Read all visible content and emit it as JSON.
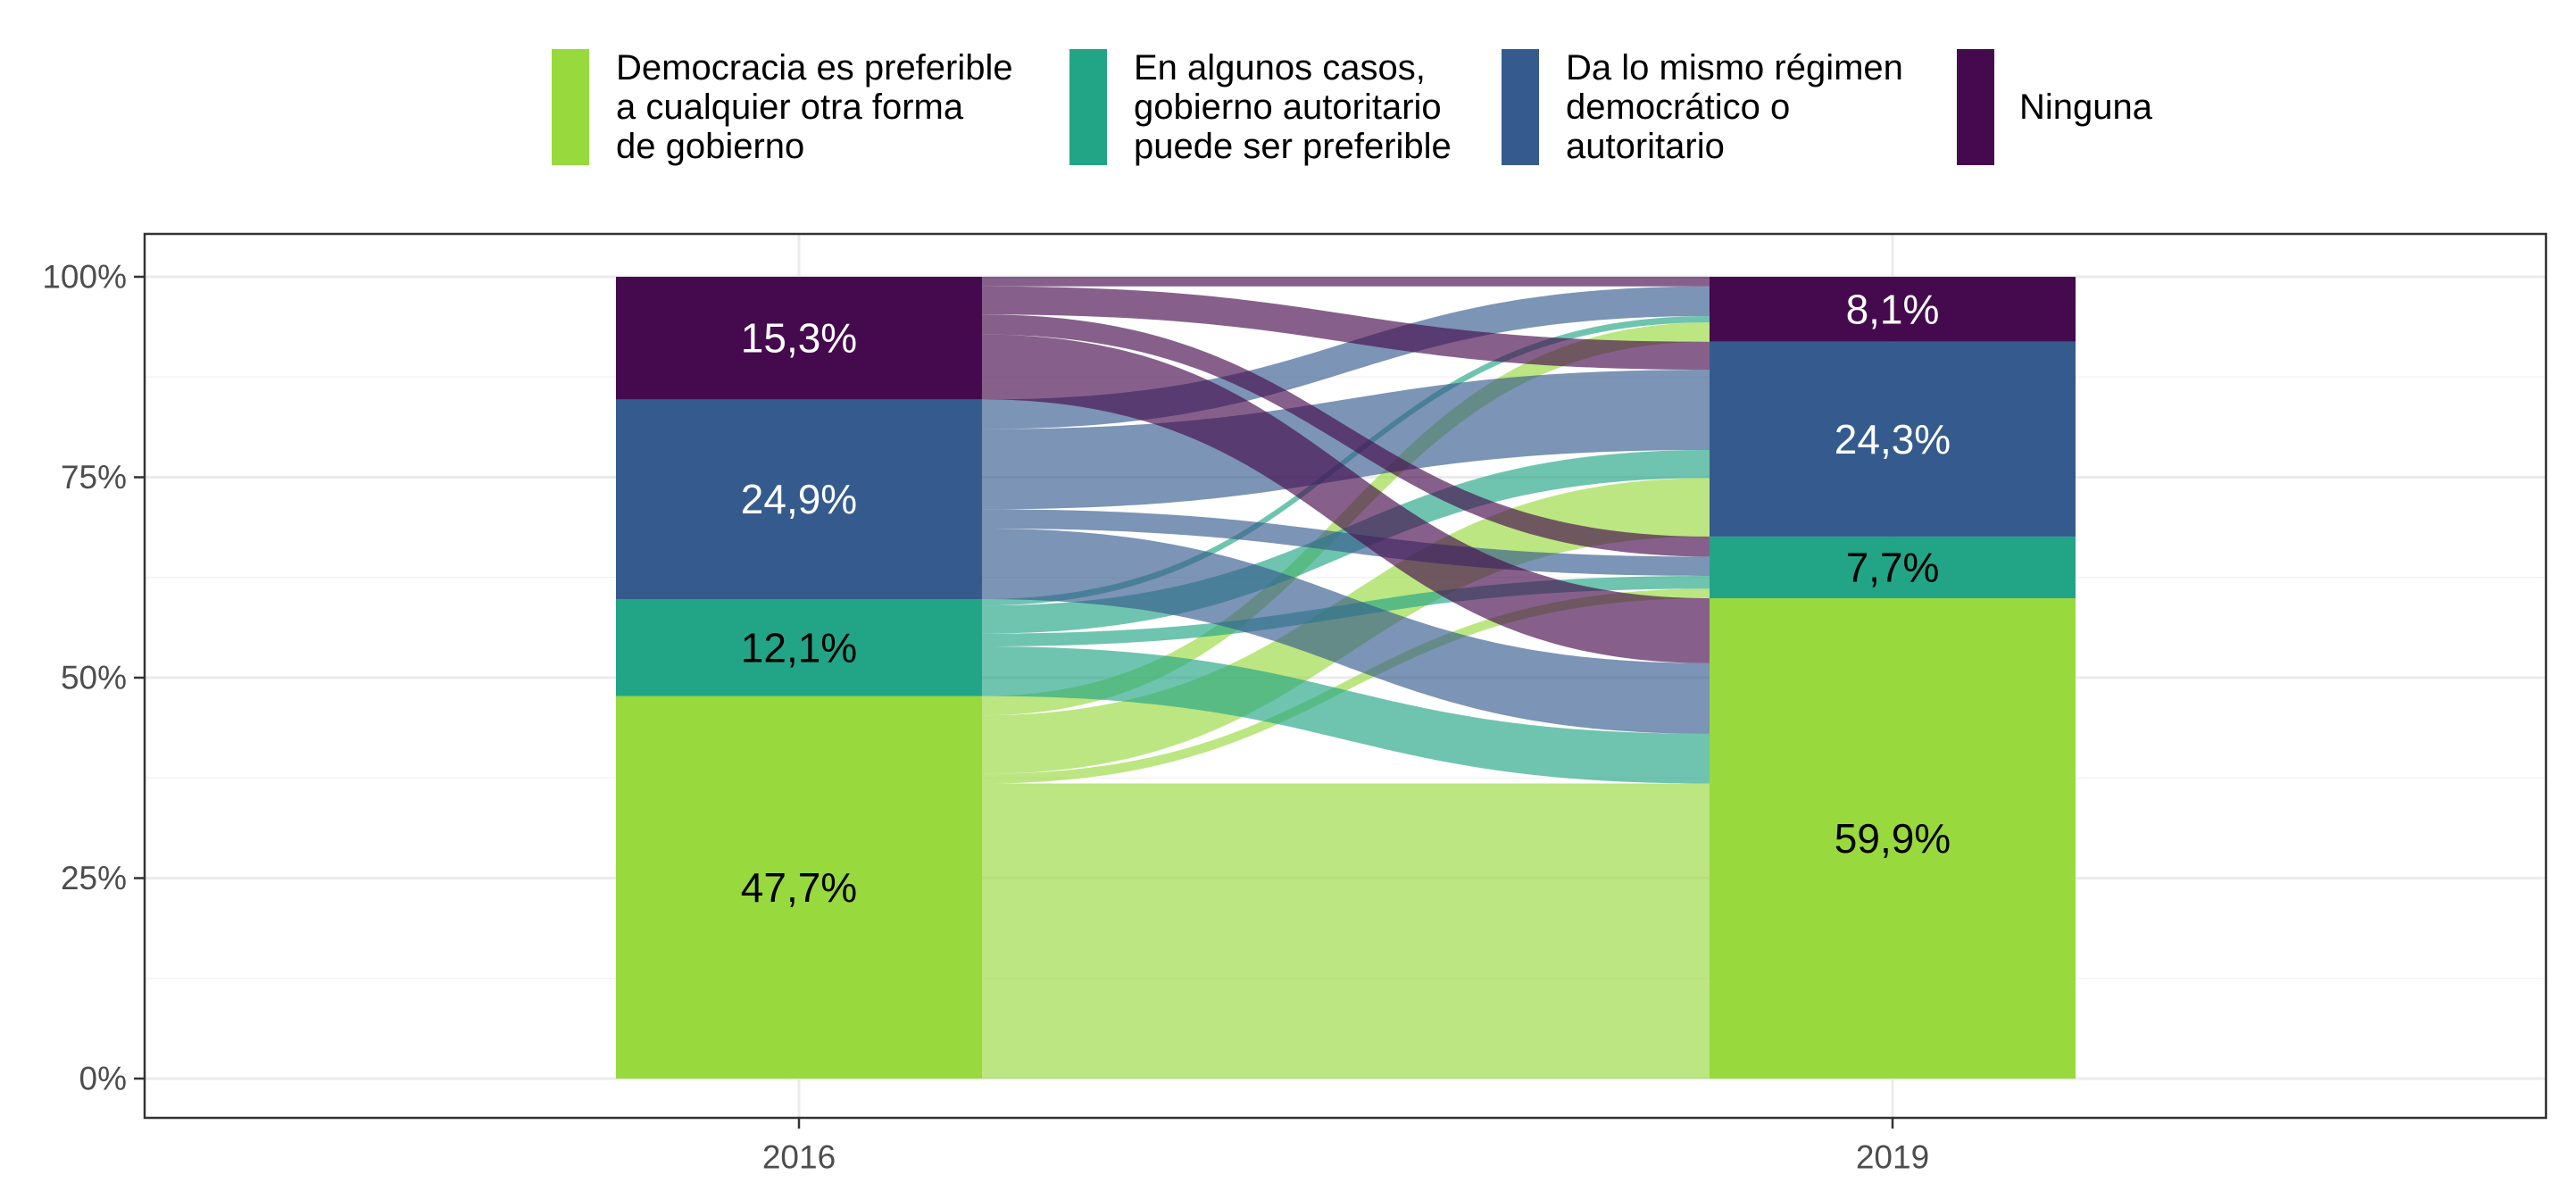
{
  "chart_data": {
    "type": "alluvial",
    "x": [
      "2016",
      "2019"
    ],
    "y_ticks": [
      "0%",
      "25%",
      "50%",
      "75%",
      "100%"
    ],
    "ylim": [
      0,
      100
    ],
    "grid": true,
    "legend_position": "top",
    "categories": [
      {
        "key": "democracia",
        "label_lines": [
          "Democracia es preferible",
          "a cualquier otra forma",
          "de gobierno"
        ],
        "color": "#98d93d"
      },
      {
        "key": "autoritario",
        "label_lines": [
          "En algunos casos,",
          "gobierno autoritario",
          "puede ser preferible"
        ],
        "color": "#22a586"
      },
      {
        "key": "da_lo_mismo",
        "label_lines": [
          "Da lo mismo régimen",
          "democrático o",
          "autoritario"
        ],
        "color": "#355b8e"
      },
      {
        "key": "ninguna",
        "label_lines": [
          "Ninguna"
        ],
        "color": "#450a4d"
      }
    ],
    "stacks": {
      "2016": [
        {
          "category": "democracia",
          "value": 47.7,
          "label": "47,7%",
          "label_color": "#000000"
        },
        {
          "category": "autoritario",
          "value": 12.1,
          "label": "12,1%",
          "label_color": "#000000"
        },
        {
          "category": "da_lo_mismo",
          "value": 24.9,
          "label": "24,9%",
          "label_color": "#ffffff"
        },
        {
          "category": "ninguna",
          "value": 15.3,
          "label": "15,3%",
          "label_color": "#ffffff"
        }
      ],
      "2019": [
        {
          "category": "democracia",
          "value": 59.9,
          "label": "59,9%",
          "label_color": "#000000"
        },
        {
          "category": "autoritario",
          "value": 7.7,
          "label": "7,7%",
          "label_color": "#000000"
        },
        {
          "category": "da_lo_mismo",
          "value": 24.3,
          "label": "24,3%",
          "label_color": "#ffffff"
        },
        {
          "category": "ninguna",
          "value": 8.1,
          "label": "8,1%",
          "label_color": "#ffffff"
        }
      ]
    },
    "flows": [
      {
        "from": "democracia",
        "to": "democracia",
        "value": 36.8
      },
      {
        "from": "democracia",
        "to": "autoritario",
        "value": 1.2
      },
      {
        "from": "democracia",
        "to": "da_lo_mismo",
        "value": 7.3
      },
      {
        "from": "democracia",
        "to": "ninguna",
        "value": 2.4
      },
      {
        "from": "autoritario",
        "to": "democracia",
        "value": 6.2
      },
      {
        "from": "autoritario",
        "to": "autoritario",
        "value": 1.6
      },
      {
        "from": "autoritario",
        "to": "da_lo_mismo",
        "value": 3.5
      },
      {
        "from": "autoritario",
        "to": "ninguna",
        "value": 0.8
      },
      {
        "from": "da_lo_mismo",
        "to": "democracia",
        "value": 8.8
      },
      {
        "from": "da_lo_mismo",
        "to": "autoritario",
        "value": 2.4
      },
      {
        "from": "da_lo_mismo",
        "to": "da_lo_mismo",
        "value": 10.0
      },
      {
        "from": "da_lo_mismo",
        "to": "ninguna",
        "value": 3.7
      },
      {
        "from": "ninguna",
        "to": "democracia",
        "value": 8.1
      },
      {
        "from": "ninguna",
        "to": "autoritario",
        "value": 2.5
      },
      {
        "from": "ninguna",
        "to": "da_lo_mismo",
        "value": 3.5
      },
      {
        "from": "ninguna",
        "to": "ninguna",
        "value": 1.2
      }
    ]
  }
}
